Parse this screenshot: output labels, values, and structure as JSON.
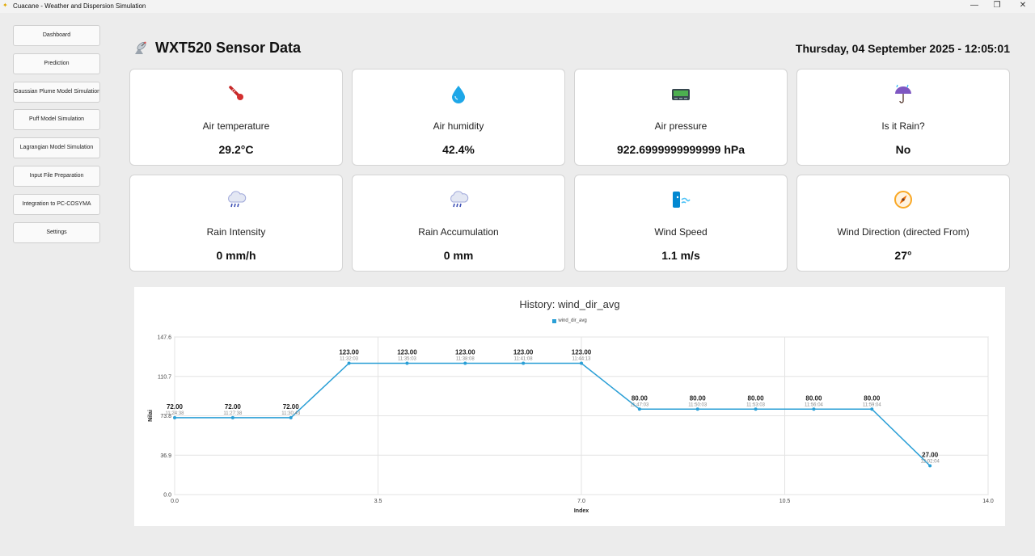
{
  "window": {
    "title": "Cuacane - Weather and Dispersion Simulation",
    "controls": {
      "minimize": "—",
      "maximize": "❐",
      "close": "✕"
    }
  },
  "sidebar": {
    "items": [
      {
        "label": "Dashboard"
      },
      {
        "label": "Prediction"
      },
      {
        "label": "Gaussian Plume Model Simulation"
      },
      {
        "label": "Puff Model Simulation"
      },
      {
        "label": "Lagrangian Model Simulation"
      },
      {
        "label": "Input File Preparation"
      },
      {
        "label": "Integration to PC-COSYMA"
      },
      {
        "label": "Settings"
      }
    ]
  },
  "header": {
    "title": "WXT520 Sensor Data",
    "icon": "satellite-dish-icon",
    "datetime": "Thursday, 04 September 2025 - 12:05:01"
  },
  "cards": [
    {
      "icon": "thermometer-icon",
      "label": "Air temperature",
      "value": "29.2°C"
    },
    {
      "icon": "water-drop-icon",
      "label": "Air humidity",
      "value": "42.4%"
    },
    {
      "icon": "pager-icon",
      "label": "Air pressure",
      "value": "922.6999999999999 hPa"
    },
    {
      "icon": "umbrella-rain-icon",
      "label": "Is it Rain?",
      "value": "No"
    },
    {
      "icon": "rain-cloud-icon",
      "label": "Rain Intensity",
      "value": "0 mm/h"
    },
    {
      "icon": "rain-cloud-icon",
      "label": "Rain Accumulation",
      "value": "0 mm"
    },
    {
      "icon": "wind-face-icon",
      "label": "Wind Speed",
      "value": "1.1 m/s"
    },
    {
      "icon": "compass-icon",
      "label": "Wind Direction (directed From)",
      "value": "27°"
    }
  ],
  "colors": {
    "line": "#2a9fd6",
    "grid": "#e3e3e3"
  },
  "chart_data": {
    "type": "line",
    "title": "History: wind_dir_avg",
    "legend": [
      "wind_dir_avg"
    ],
    "legend_position": "top-center",
    "xlabel": "Index",
    "ylabel": "Nilai",
    "xlim": [
      0.0,
      14.0
    ],
    "ylim": [
      0.0,
      147.6
    ],
    "xticks": [
      "0.0",
      "3.5",
      "7.0",
      "10.5",
      "14.0"
    ],
    "yticks": [
      "0.0",
      "36.9",
      "73.8",
      "110.7",
      "147.6"
    ],
    "grid": true,
    "series": [
      {
        "name": "wind_dir_avg",
        "x": [
          0,
          1,
          2,
          3,
          4,
          5,
          6,
          7,
          8,
          9,
          10,
          11,
          12,
          13
        ],
        "values": [
          72,
          72,
          72,
          123,
          123,
          123,
          123,
          123,
          80,
          80,
          80,
          80,
          80,
          27
        ],
        "value_labels": [
          "72.00",
          "72.00",
          "72.00",
          "123.00",
          "123.00",
          "123.00",
          "123.00",
          "123.00",
          "80.00",
          "80.00",
          "80.00",
          "80.00",
          "80.00",
          "27.00"
        ],
        "time_labels": [
          "11:24:38",
          "11:27:38",
          "11:30:43",
          "11:32:03",
          "11:35:03",
          "11:38:08",
          "11:41:08",
          "11:44:13",
          "11:47:03",
          "11:50:03",
          "11:53:03",
          "11:56:04",
          "11:59:04",
          "12:02:04"
        ]
      }
    ]
  }
}
